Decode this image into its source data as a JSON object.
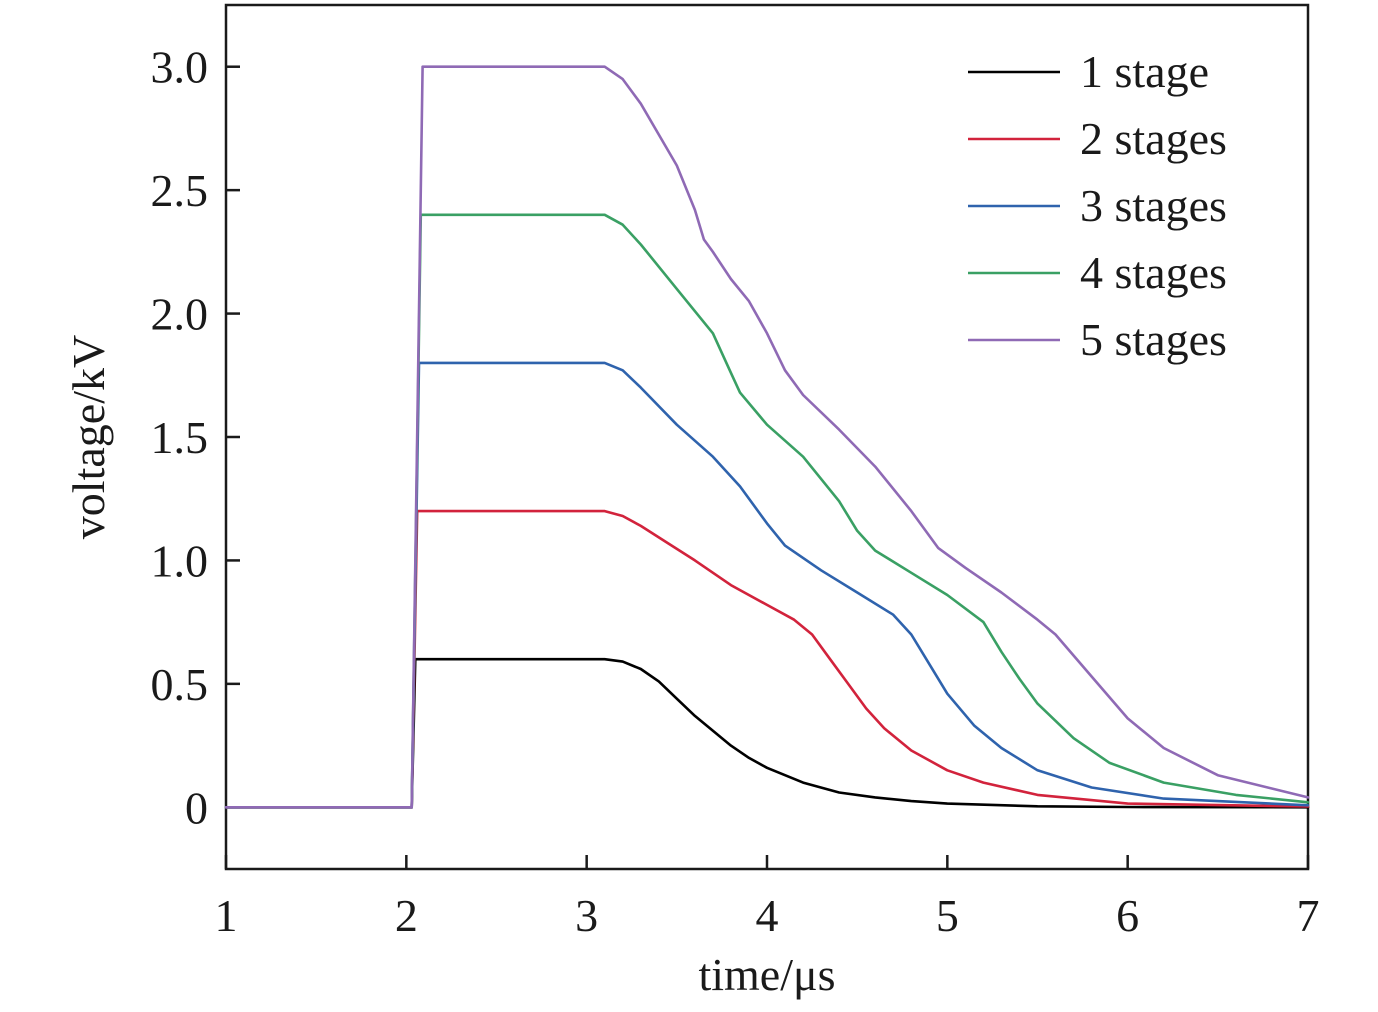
{
  "chart_data": {
    "type": "line",
    "xlabel": "time/μs",
    "ylabel": "voltage/kV",
    "xlim": [
      1,
      7
    ],
    "ylim": [
      -0.25,
      3.25
    ],
    "xticks": [
      1,
      2,
      3,
      4,
      5,
      6,
      7
    ],
    "xtick_labels": [
      "1",
      "2",
      "3",
      "4",
      "5",
      "6",
      "7"
    ],
    "yticks": [
      0,
      0.5,
      1.0,
      1.5,
      2.0,
      2.5,
      3.0
    ],
    "ytick_labels": [
      "0",
      "0.5",
      "1.0",
      "1.5",
      "2.0",
      "2.5",
      "3.0"
    ],
    "grid": false,
    "legend_position": "top-right",
    "series": [
      {
        "name": "1 stage",
        "color": "#000000",
        "points": [
          [
            1,
            0
          ],
          [
            2.0,
            0
          ],
          [
            2.03,
            0
          ],
          [
            2.05,
            0.6
          ],
          [
            3.0,
            0.6
          ],
          [
            3.1,
            0.6
          ],
          [
            3.2,
            0.59
          ],
          [
            3.3,
            0.56
          ],
          [
            3.4,
            0.51
          ],
          [
            3.5,
            0.44
          ],
          [
            3.6,
            0.37
          ],
          [
            3.7,
            0.31
          ],
          [
            3.8,
            0.25
          ],
          [
            3.9,
            0.2
          ],
          [
            4.0,
            0.16
          ],
          [
            4.2,
            0.1
          ],
          [
            4.4,
            0.06
          ],
          [
            4.6,
            0.04
          ],
          [
            4.8,
            0.025
          ],
          [
            5.0,
            0.015
          ],
          [
            5.5,
            0.004
          ],
          [
            6.0,
            0.001
          ],
          [
            7.0,
            0
          ]
        ]
      },
      {
        "name": "2 stages",
        "color": "#d2233c",
        "points": [
          [
            1,
            0
          ],
          [
            2.0,
            0
          ],
          [
            2.03,
            0
          ],
          [
            2.06,
            1.2
          ],
          [
            3.0,
            1.2
          ],
          [
            3.1,
            1.2
          ],
          [
            3.2,
            1.18
          ],
          [
            3.3,
            1.14
          ],
          [
            3.45,
            1.07
          ],
          [
            3.6,
            1.0
          ],
          [
            3.8,
            0.9
          ],
          [
            4.0,
            0.82
          ],
          [
            4.15,
            0.76
          ],
          [
            4.25,
            0.7
          ],
          [
            4.35,
            0.6
          ],
          [
            4.45,
            0.5
          ],
          [
            4.55,
            0.4
          ],
          [
            4.65,
            0.32
          ],
          [
            4.8,
            0.23
          ],
          [
            5.0,
            0.15
          ],
          [
            5.2,
            0.1
          ],
          [
            5.5,
            0.05
          ],
          [
            6.0,
            0.015
          ],
          [
            7.0,
            0.003
          ]
        ]
      },
      {
        "name": "3 stages",
        "color": "#2f63ad",
        "points": [
          [
            1,
            0
          ],
          [
            2.0,
            0
          ],
          [
            2.03,
            0
          ],
          [
            2.07,
            1.8
          ],
          [
            3.0,
            1.8
          ],
          [
            3.1,
            1.8
          ],
          [
            3.2,
            1.77
          ],
          [
            3.3,
            1.7
          ],
          [
            3.5,
            1.55
          ],
          [
            3.7,
            1.42
          ],
          [
            3.85,
            1.3
          ],
          [
            4.0,
            1.15
          ],
          [
            4.1,
            1.06
          ],
          [
            4.3,
            0.96
          ],
          [
            4.5,
            0.87
          ],
          [
            4.7,
            0.78
          ],
          [
            4.8,
            0.7
          ],
          [
            4.9,
            0.58
          ],
          [
            5.0,
            0.46
          ],
          [
            5.15,
            0.33
          ],
          [
            5.3,
            0.24
          ],
          [
            5.5,
            0.15
          ],
          [
            5.8,
            0.08
          ],
          [
            6.2,
            0.035
          ],
          [
            7.0,
            0.008
          ]
        ]
      },
      {
        "name": "4 stages",
        "color": "#3aa064",
        "points": [
          [
            1,
            0
          ],
          [
            2.0,
            0
          ],
          [
            2.03,
            0
          ],
          [
            2.08,
            2.4
          ],
          [
            3.0,
            2.4
          ],
          [
            3.1,
            2.4
          ],
          [
            3.2,
            2.36
          ],
          [
            3.3,
            2.28
          ],
          [
            3.5,
            2.1
          ],
          [
            3.7,
            1.92
          ],
          [
            3.8,
            1.76
          ],
          [
            3.85,
            1.68
          ],
          [
            4.0,
            1.55
          ],
          [
            4.2,
            1.42
          ],
          [
            4.4,
            1.24
          ],
          [
            4.5,
            1.12
          ],
          [
            4.6,
            1.04
          ],
          [
            4.8,
            0.95
          ],
          [
            5.0,
            0.86
          ],
          [
            5.2,
            0.75
          ],
          [
            5.3,
            0.63
          ],
          [
            5.4,
            0.52
          ],
          [
            5.5,
            0.42
          ],
          [
            5.7,
            0.28
          ],
          [
            5.9,
            0.18
          ],
          [
            6.2,
            0.1
          ],
          [
            6.6,
            0.05
          ],
          [
            7.0,
            0.02
          ]
        ]
      },
      {
        "name": "5 stages",
        "color": "#8f6ab5",
        "points": [
          [
            1,
            0
          ],
          [
            2.0,
            0
          ],
          [
            2.03,
            0
          ],
          [
            2.09,
            3.0
          ],
          [
            3.0,
            3.0
          ],
          [
            3.1,
            3.0
          ],
          [
            3.2,
            2.95
          ],
          [
            3.3,
            2.85
          ],
          [
            3.5,
            2.6
          ],
          [
            3.6,
            2.42
          ],
          [
            3.65,
            2.3
          ],
          [
            3.7,
            2.25
          ],
          [
            3.8,
            2.14
          ],
          [
            3.9,
            2.05
          ],
          [
            4.0,
            1.92
          ],
          [
            4.1,
            1.77
          ],
          [
            4.2,
            1.67
          ],
          [
            4.4,
            1.53
          ],
          [
            4.6,
            1.38
          ],
          [
            4.8,
            1.2
          ],
          [
            4.95,
            1.05
          ],
          [
            5.1,
            0.97
          ],
          [
            5.3,
            0.87
          ],
          [
            5.5,
            0.76
          ],
          [
            5.6,
            0.7
          ],
          [
            5.8,
            0.53
          ],
          [
            6.0,
            0.36
          ],
          [
            6.2,
            0.24
          ],
          [
            6.5,
            0.13
          ],
          [
            7.0,
            0.04
          ]
        ]
      }
    ]
  }
}
